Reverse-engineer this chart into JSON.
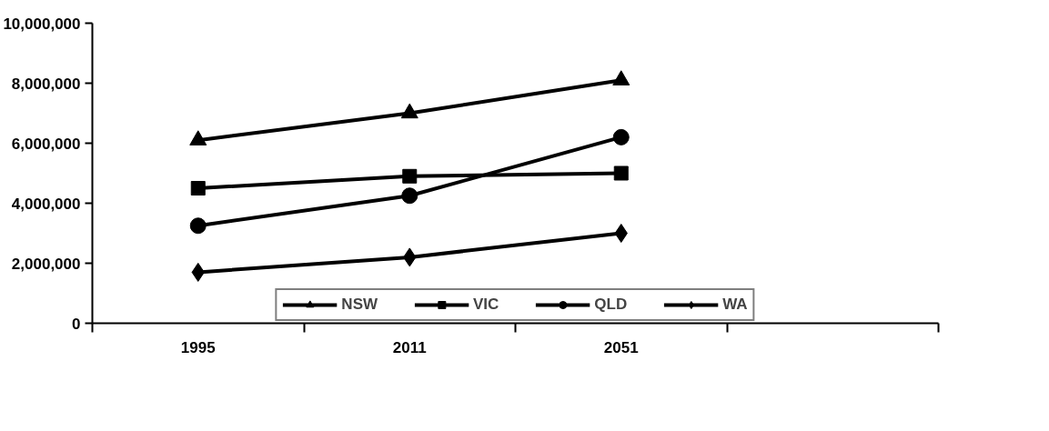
{
  "chart_data": {
    "type": "line",
    "categories": [
      "1995",
      "2011",
      "2051",
      null
    ],
    "ylim": [
      0,
      10000000
    ],
    "yticks": [
      {
        "value": 0,
        "label": "0"
      },
      {
        "value": 2000000,
        "label": "2,000,000"
      },
      {
        "value": 4000000,
        "label": "4,000,000"
      },
      {
        "value": 6000000,
        "label": "6,000,000"
      },
      {
        "value": 8000000,
        "label": "8,000,000"
      },
      {
        "value": 10000000,
        "label": "10,000,000"
      }
    ],
    "grid": false,
    "legend": "bottom",
    "line_style": "solid",
    "series": [
      {
        "name": "NSW",
        "color": "#000000",
        "marker": "triangle",
        "values": [
          6100000,
          7000000,
          8100000,
          null
        ]
      },
      {
        "name": "VIC",
        "color": "#000000",
        "marker": "square",
        "values": [
          4500000,
          4900000,
          5000000,
          null
        ]
      },
      {
        "name": "QLD",
        "color": "#000000",
        "marker": "circle",
        "values": [
          3250000,
          4250000,
          6200000,
          null
        ]
      },
      {
        "name": "WA",
        "color": "#000000",
        "marker": "diamond",
        "values": [
          1700000,
          2200000,
          3000000,
          null
        ]
      }
    ]
  }
}
